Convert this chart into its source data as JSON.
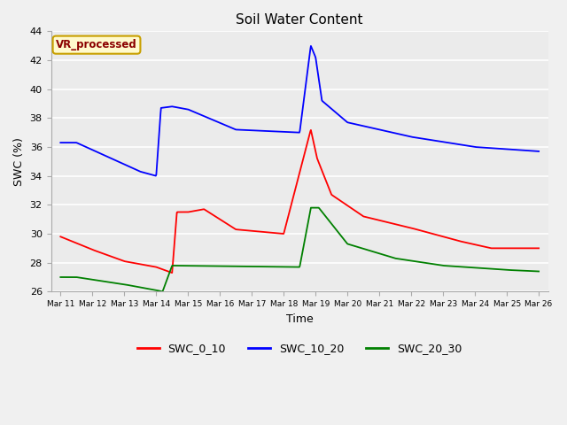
{
  "title": "Soil Water Content",
  "xlabel": "Time",
  "ylabel": "SWC (%)",
  "ylim": [
    26,
    44
  ],
  "background_color": "#f0f0f0",
  "plot_bg_color": "#ebebeb",
  "annotation_text": "VR_processed",
  "annotation_color": "#8B0000",
  "annotation_bg": "#FFFACD",
  "annotation_edge": "#c8a000",
  "legend_labels": [
    "SWC_0_10",
    "SWC_10_20",
    "SWC_20_30"
  ],
  "legend_colors": [
    "red",
    "blue",
    "green"
  ],
  "xtick_labels": [
    "Mar 11",
    "Mar 12",
    "Mar 13",
    "Mar 14",
    "Mar 15",
    "Mar 16",
    "Mar 17",
    "Mar 18",
    "Mar 19",
    "Mar 20",
    "Mar 21",
    "Mar 22",
    "Mar 23",
    "Mar 24",
    "Mar 25",
    "Mar 26"
  ]
}
